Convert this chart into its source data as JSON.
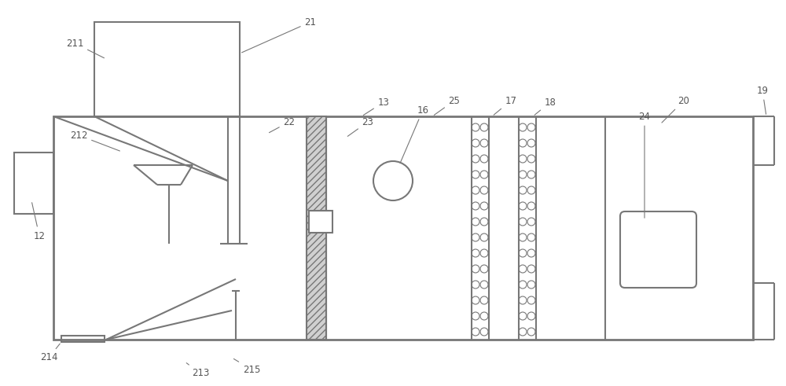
{
  "bg_color": "#ffffff",
  "lc": "#777777",
  "lw": 1.5,
  "tlw": 2.0,
  "fs": 8.5,
  "fc": "#555555"
}
